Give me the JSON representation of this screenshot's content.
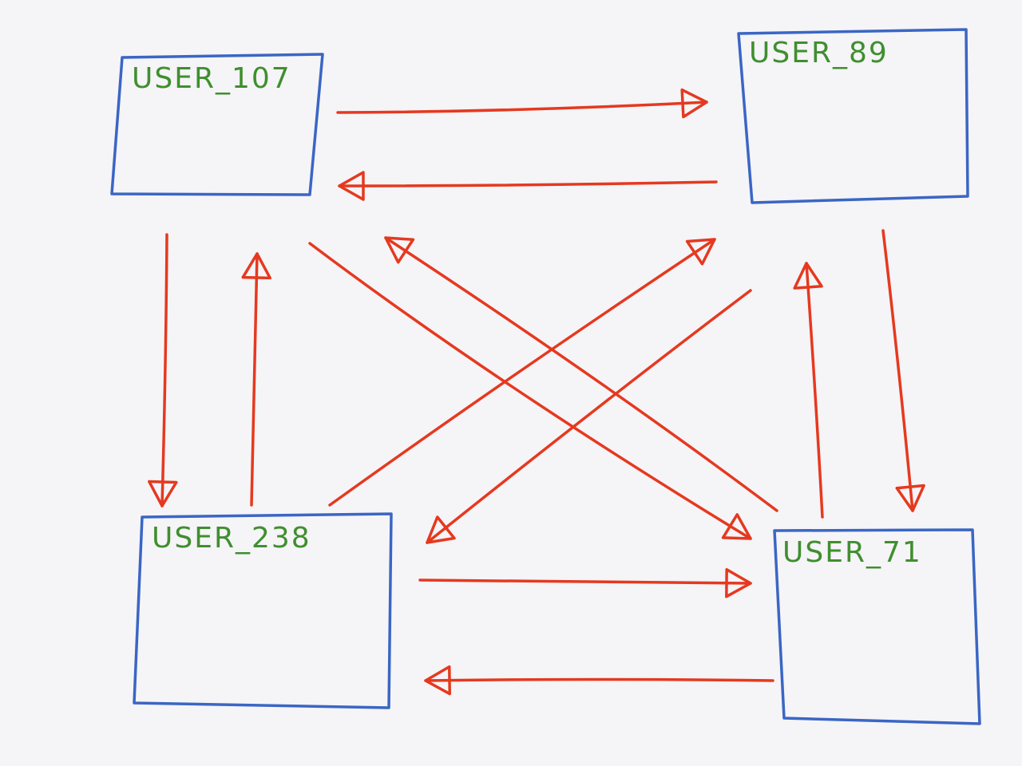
{
  "diagram": {
    "type": "hand-drawn graph",
    "colors": {
      "background": "#f5f4f7",
      "box_stroke": "#3a66c4",
      "label": "#3f8f2e",
      "arrow": "#e5391f"
    },
    "nodes": [
      {
        "id": "user_107",
        "label": "USER_107"
      },
      {
        "id": "user_89",
        "label": "USER_89"
      },
      {
        "id": "user_238",
        "label": "USER_238"
      },
      {
        "id": "user_71",
        "label": "USER_71"
      }
    ],
    "edges": [
      {
        "from": "user_107",
        "to": "user_89"
      },
      {
        "from": "user_89",
        "to": "user_107"
      },
      {
        "from": "user_107",
        "to": "user_238"
      },
      {
        "from": "user_238",
        "to": "user_107"
      },
      {
        "from": "user_89",
        "to": "user_71"
      },
      {
        "from": "user_71",
        "to": "user_89"
      },
      {
        "from": "user_238",
        "to": "user_71"
      },
      {
        "from": "user_71",
        "to": "user_238"
      },
      {
        "from": "user_107",
        "to": "user_71"
      },
      {
        "from": "user_71",
        "to": "user_107"
      },
      {
        "from": "user_238",
        "to": "user_89"
      },
      {
        "from": "user_89",
        "to": "user_238"
      }
    ]
  }
}
